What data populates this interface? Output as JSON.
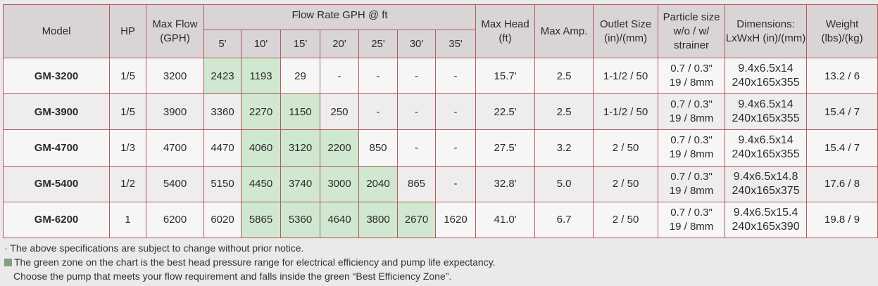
{
  "header": {
    "model": "Model",
    "hp": "HP",
    "max_flow_line1": "Max Flow",
    "max_flow_line2": "(GPH)",
    "flow_rate": "Flow Rate GPH @ ft",
    "heads": [
      "5'",
      "10'",
      "15'",
      "20'",
      "25'",
      "30'",
      "35'"
    ],
    "max_head_line1": "Max Head",
    "max_head_line2": "(ft)",
    "max_amp": "Max Amp.",
    "outlet_line1": "Outlet Size",
    "outlet_line2": "(in)/(mm)",
    "particle_line1": "Particle size",
    "particle_line2": "w/o / w/",
    "particle_line3": "strainer",
    "dimensions_line1": "Dimensions:",
    "dimensions_line2": "LxWxH (in)/(mm)",
    "weight_line1": "Weight",
    "weight_line2": "(lbs)/(kg)"
  },
  "rows": [
    {
      "model": "GM-3200",
      "hp": "1/5",
      "max_flow": "3200",
      "flows": [
        "2423",
        "1193",
        "29",
        "-",
        "-",
        "-",
        "-"
      ],
      "green": [
        true,
        true,
        false,
        false,
        false,
        false,
        false
      ],
      "max_head": "15.7'",
      "max_amp": "2.5",
      "outlet": "1-1/2 / 50",
      "particle1": "0.7 / 0.3\"",
      "particle2": "19 / 8mm",
      "dim1": "9.4x6.5x14",
      "dim2": "240x165x355",
      "weight": "13.2 / 6"
    },
    {
      "model": "GM-3900",
      "hp": "1/5",
      "max_flow": "3900",
      "flows": [
        "3360",
        "2270",
        "1150",
        "250",
        "-",
        "-",
        "-"
      ],
      "green": [
        false,
        true,
        true,
        false,
        false,
        false,
        false
      ],
      "max_head": "22.5'",
      "max_amp": "2.5",
      "outlet": "1-1/2 / 50",
      "particle1": "0.7 / 0.3\"",
      "particle2": "19 / 8mm",
      "dim1": "9.4x6.5x14",
      "dim2": "240x165x355",
      "weight": "15.4 / 7"
    },
    {
      "model": "GM-4700",
      "hp": "1/3",
      "max_flow": "4700",
      "flows": [
        "4470",
        "4060",
        "3120",
        "2200",
        "850",
        "-",
        "-"
      ],
      "green": [
        false,
        true,
        true,
        true,
        false,
        false,
        false
      ],
      "max_head": "27.5'",
      "max_amp": "3.2",
      "outlet": "2 / 50",
      "particle1": "0.7 / 0.3\"",
      "particle2": "19 / 8mm",
      "dim1": "9.4x6.5x14",
      "dim2": "240x165x355",
      "weight": "15.4 / 7"
    },
    {
      "model": "GM-5400",
      "hp": "1/2",
      "max_flow": "5400",
      "flows": [
        "5150",
        "4450",
        "3740",
        "3000",
        "2040",
        "865",
        "-"
      ],
      "green": [
        false,
        true,
        true,
        true,
        true,
        false,
        false
      ],
      "max_head": "32.8'",
      "max_amp": "5.0",
      "outlet": "2 / 50",
      "particle1": "0.7 / 0.3\"",
      "particle2": "19 / 8mm",
      "dim1": "9.4x6.5x14.8",
      "dim2": "240x165x375",
      "weight": "17.6 / 8"
    },
    {
      "model": "GM-6200",
      "hp": "1",
      "max_flow": "6200",
      "flows": [
        "6020",
        "5865",
        "5360",
        "4640",
        "3800",
        "2670",
        "1620"
      ],
      "green": [
        false,
        true,
        true,
        true,
        true,
        true,
        false
      ],
      "max_head": "41.0'",
      "max_amp": "6.7",
      "outlet": "2 / 50",
      "particle1": "0.7 / 0.3\"",
      "particle2": "19 / 8mm",
      "dim1": "9.4x6.5x15.4",
      "dim2": "240x165x390",
      "weight": "19.8 / 9"
    }
  ],
  "notes": {
    "line1": "· The above specifications are subject to change without prior notice.",
    "line2": "The green zone on the chart is the best head pressure range for electrical efficiency and pump life expectancy.",
    "line3": "Choose the pump that meets your flow requirement and falls inside the green “Best Efficiency Zone”."
  },
  "colors": {
    "border": "#b25c5c",
    "green_zone": "#cfe8cf",
    "header_bg": "#d9d4d6"
  }
}
